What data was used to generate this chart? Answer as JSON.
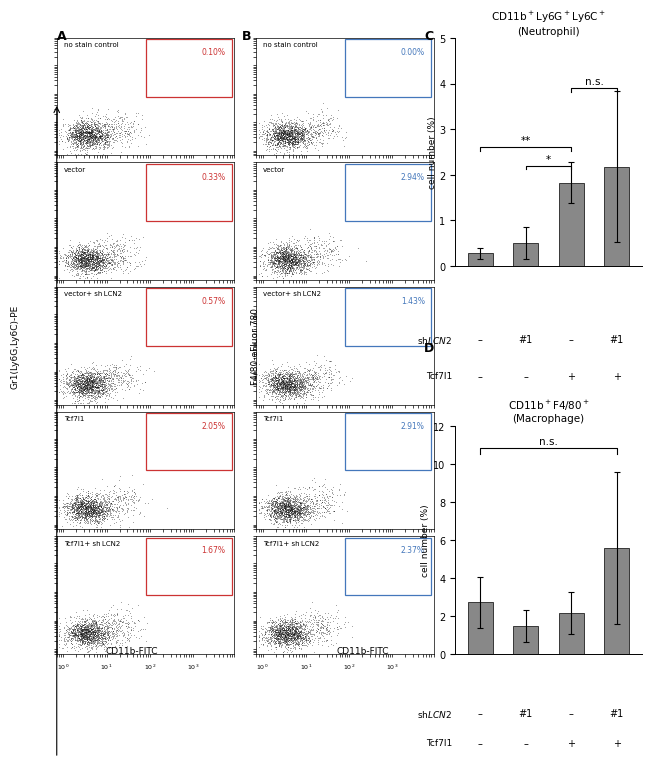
{
  "panel_A_labels": [
    "no stain control",
    "vector",
    "vector+ sh LCN2",
    "Tcf7l1",
    "Tcf7l1+ sh LCN2"
  ],
  "panel_A_pcts": [
    "0.10%",
    "0.33%",
    "0.57%",
    "2.05%",
    "1.67%"
  ],
  "panel_B_labels": [
    "no stain control",
    "vector",
    "vector+ sh LCN2",
    "Tcf7l1",
    "Tcf7l1+ sh LCN2"
  ],
  "panel_B_pcts": [
    "0.00%",
    "2.94%",
    "1.43%",
    "2.91%",
    "2.37%"
  ],
  "xlabel_AB": "CD11b-FITC",
  "ylabel_A": "Gr1(Ly6G,Ly6C)-PE",
  "ylabel_B": "F4/80-eFluor 780",
  "panel_C_title1": "CD11b+Ly6G+Ly6C+",
  "panel_C_title2": "(Neutrophil)",
  "panel_C_values": [
    0.28,
    0.5,
    1.82,
    2.18
  ],
  "panel_C_errors": [
    0.12,
    0.35,
    0.45,
    1.65
  ],
  "panel_C_ylim": [
    0,
    5
  ],
  "panel_C_yticks": [
    0,
    1,
    2,
    3,
    4,
    5
  ],
  "panel_D_title1": "CD11b+F4/80+",
  "panel_D_title2": "(Macrophage)",
  "panel_D_values": [
    2.7,
    1.45,
    2.15,
    5.55
  ],
  "panel_D_errors": [
    1.35,
    0.85,
    1.1,
    4.0
  ],
  "panel_D_ylim": [
    0,
    12
  ],
  "panel_D_yticks": [
    0,
    2,
    4,
    6,
    8,
    10,
    12
  ],
  "bar_color": "#888888",
  "ylabel_CD": "cell number (%)",
  "xlabels_shLCN2": [
    "–",
    "#1",
    "–",
    "#1"
  ],
  "xlabels_Tcf7l1": [
    "–",
    "–",
    "+",
    "+"
  ],
  "box_color_A": "#cc3333",
  "box_color_B": "#4477bb",
  "scatter_color": "#111111",
  "background": "#ffffff"
}
